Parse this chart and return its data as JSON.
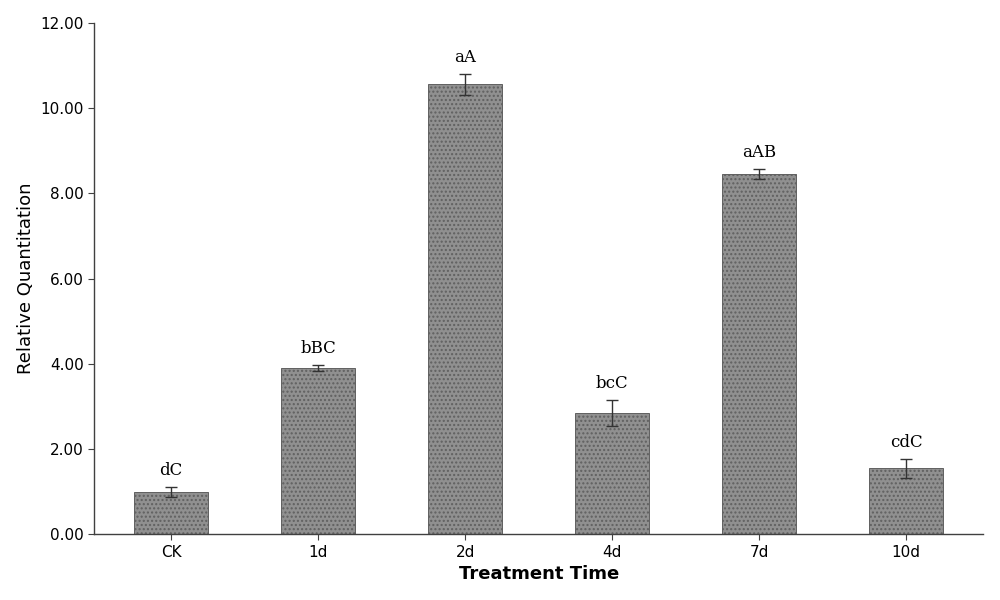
{
  "categories": [
    "CK",
    "1d",
    "2d",
    "4d",
    "7d",
    "10d"
  ],
  "values": [
    1.0,
    3.9,
    10.55,
    2.85,
    8.45,
    1.55
  ],
  "errors": [
    0.12,
    0.08,
    0.25,
    0.3,
    0.12,
    0.22
  ],
  "labels": [
    "dC",
    "bBC",
    "aA",
    "bcC",
    "aAB",
    "cdC"
  ],
  "bar_color": "#909090",
  "ylabel": "Relative Quantitation",
  "xlabel": "Treatment Time",
  "ylim": [
    0,
    12.0
  ],
  "yticks": [
    0.0,
    2.0,
    4.0,
    6.0,
    8.0,
    10.0,
    12.0
  ],
  "ytick_labels": [
    "0.00",
    "2.00",
    "4.00",
    "6.00",
    "8.00",
    "10.00",
    "12.00"
  ],
  "ylabel_fontsize": 13,
  "xlabel_fontsize": 13,
  "tick_fontsize": 11,
  "annotation_fontsize": 12,
  "background_color": "#ffffff",
  "figure_background": "#ffffff",
  "bar_width": 0.5,
  "bar_edge_color": "#606060",
  "spine_color": "#404040"
}
